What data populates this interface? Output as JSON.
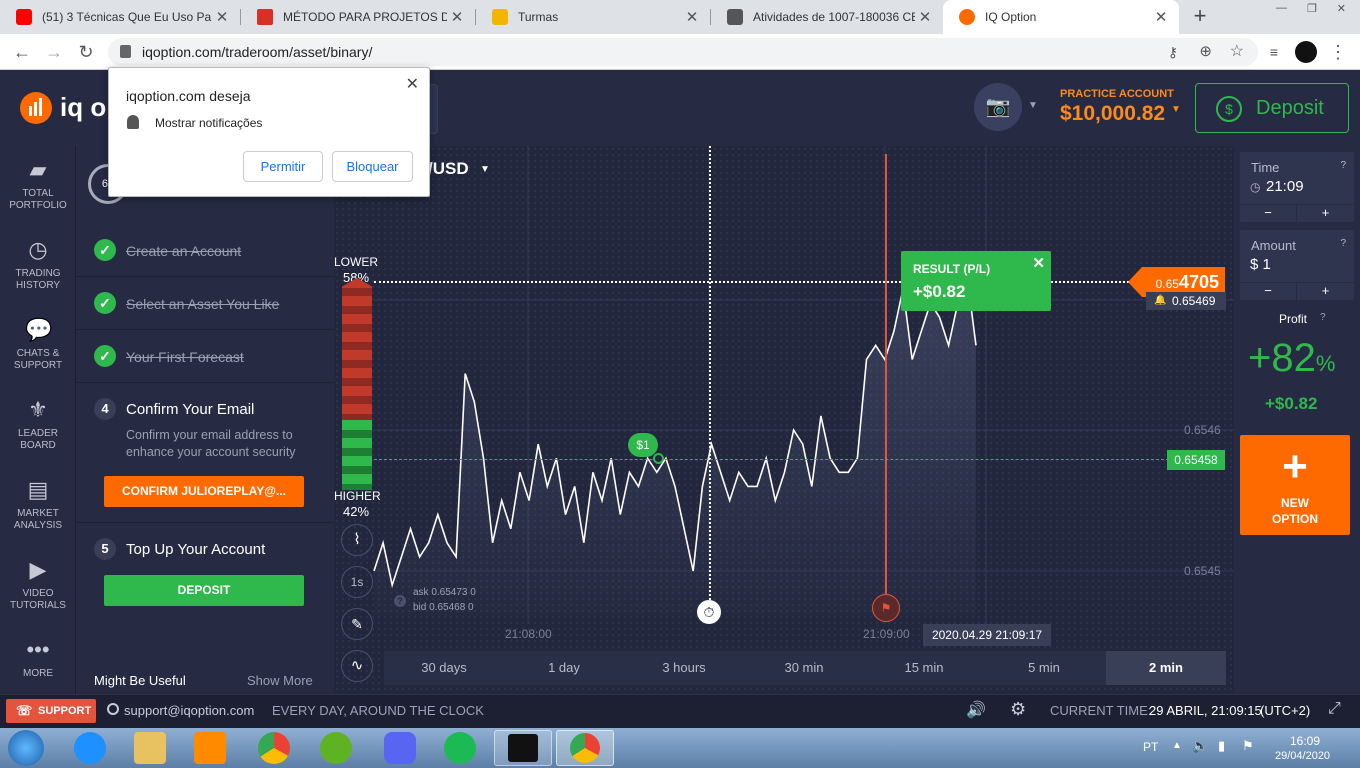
{
  "browser": {
    "tabs": [
      {
        "title": "(51) 3 Técnicas Que Eu Uso Para",
        "favicon_color": "#ff0000"
      },
      {
        "title": "MÉTODO PARA PROJETOS DE A",
        "favicon_color": "#d93025"
      },
      {
        "title": "Turmas",
        "favicon_color": "#f4b400"
      },
      {
        "title": "Atividades de 1007-180036 CE",
        "favicon_color": "#555555"
      },
      {
        "title": "IQ Option",
        "favicon_color": "#ff6a00"
      }
    ],
    "url": "iqoption.com/traderoom/asset/binary/"
  },
  "popup": {
    "title": "iqoption.com deseja",
    "message": "Mostrar notificações",
    "allow": "Permitir",
    "block": "Bloquear"
  },
  "header": {
    "logo": "iq op",
    "account_type": "PRACTICE ACCOUNT",
    "balance": "$10,000.82",
    "deposit": "Deposit"
  },
  "leftnav": [
    {
      "label": "TOTAL PORTFOLIO",
      "icon": "briefcase-icon"
    },
    {
      "label": "TRADING HISTORY",
      "icon": "history-icon"
    },
    {
      "label": "CHATS & SUPPORT",
      "icon": "chat-icon"
    },
    {
      "label": "LEADER BOARD",
      "icon": "medal-icon"
    },
    {
      "label": "MARKET ANALYSIS",
      "icon": "news-icon"
    },
    {
      "label": "VIDEO TUTORIALS",
      "icon": "play-icon"
    },
    {
      "label": "MORE",
      "icon": "more-icon"
    }
  ],
  "panel": {
    "progress": "60",
    "tasks_done": [
      "Create an Account",
      "Select an Asset You Like",
      "Your First Forecast"
    ],
    "step4": {
      "num": "4",
      "title": "Confirm Your Email",
      "desc": "Confirm your email address to enhance your account security",
      "button": "CONFIRM JULIOREPLAY@..."
    },
    "step5": {
      "num": "5",
      "title": "Top Up Your Account",
      "button": "DEPOSIT"
    },
    "might": "Might Be Useful",
    "show_more": "Show More"
  },
  "chart": {
    "asset": "/USD",
    "lower_label": "LOWER",
    "lower_pct": "58%",
    "higher_label": "HIGHER",
    "higher_pct": "42%",
    "result_title": "RESULT (P/L)",
    "result_value": "+$0.82",
    "current_price_small": "0.65",
    "current_price_big": "4705",
    "price_tag2": "0.65469",
    "entry_price": "0.65458",
    "tick_0_6546": "0.6546",
    "tick_0_6545": "0.6545",
    "bet": "$1",
    "ask": "ask 0.65473 0",
    "bid": "bid 0.65468 0",
    "time1": "21:08:00",
    "time2": "21:09:00",
    "timestamp": "2020.04.29 21:09:17",
    "timeframe_label": "1s",
    "timeframes": [
      "30 days",
      "1 day",
      "3 hours",
      "30 min",
      "15 min",
      "5 min",
      "2 min"
    ],
    "selected_timeframe": "2 min"
  },
  "chart_data": {
    "type": "line",
    "x_labels": [
      "21:08:00",
      "21:09:00"
    ],
    "y_ticks": [
      0.6546,
      0.6545
    ],
    "points": [
      0.6545,
      0.65452,
      0.65449,
      0.65451,
      0.65453,
      0.65451,
      0.65452,
      0.65454,
      0.65452,
      0.65451,
      0.65464,
      0.65462,
      0.65458,
      0.65452,
      0.65455,
      0.65453,
      0.65457,
      0.65455,
      0.65459,
      0.65456,
      0.65458,
      0.65454,
      0.65456,
      0.65452,
      0.65457,
      0.65455,
      0.65458,
      0.65454,
      0.65457,
      0.65456,
      0.65458,
      0.65457,
      0.65458,
      0.65456,
      0.65453,
      0.6545,
      0.65456,
      0.65459,
      0.65457,
      0.65455,
      0.65457,
      0.65456,
      0.65456,
      0.65458,
      0.65455,
      0.65457,
      0.6546,
      0.65459,
      0.65456,
      0.65461,
      0.65458,
      0.65457,
      0.65457,
      0.65458,
      0.65465,
      0.65466,
      0.65465,
      0.65467,
      0.6547,
      0.65465,
      0.65467,
      0.65469,
      0.65468,
      0.65466,
      0.65469,
      0.65471,
      0.65466
    ]
  },
  "rightpanel": {
    "time_label": "Time",
    "time_value": "21:09",
    "amount_label": "Amount",
    "amount_value": "$ 1",
    "profit_label": "Profit",
    "profit_pct": "+82",
    "profit_pct_sign": "%",
    "profit_value": "+$0.82",
    "new_option": "NEW OPTION"
  },
  "footer": {
    "support": "SUPPORT",
    "email": "support@iqoption.com",
    "tagline": "EVERY DAY, AROUND THE CLOCK",
    "current_time_label": "CURRENT TIME:",
    "current_time": "29 ABRIL, 21:09:15",
    "tz": "(UTC+2)"
  },
  "taskbar": {
    "lang": "PT",
    "clock": "16:09",
    "date": "29/04/2020"
  }
}
